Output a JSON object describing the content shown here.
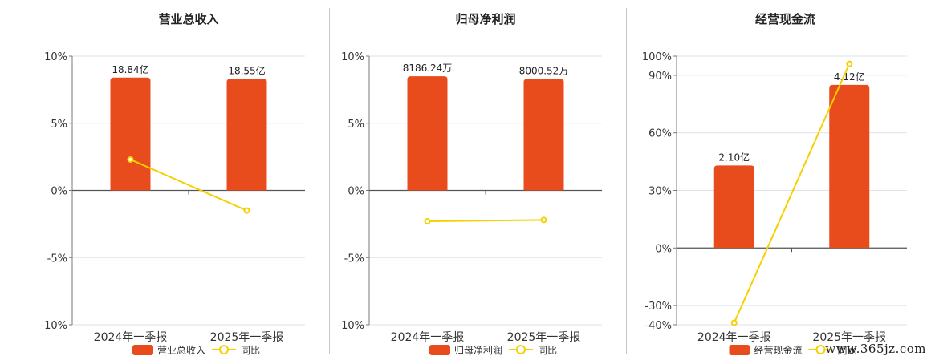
{
  "watermark": "www.365jz.com",
  "colors": {
    "bar": "#e84c1c",
    "line": "#f5d000",
    "grid": "#dde3ea",
    "axis": "#7a7a7a"
  },
  "chart_data": [
    {
      "type": "bar",
      "title": "营业总收入",
      "categories": [
        "2024年一季报",
        "2025年一季报"
      ],
      "series": [
        {
          "name": "营业总收入",
          "type": "bar",
          "axis": "left",
          "values": [
            8.4,
            8.3
          ],
          "labels": [
            "18.84亿",
            "18.55亿"
          ]
        },
        {
          "name": "同比",
          "type": "line",
          "axis": "left",
          "values": [
            2.3,
            -1.5
          ]
        }
      ],
      "yticks": [
        10,
        5,
        0,
        -5,
        -10
      ],
      "ytick_labels": [
        "10%",
        "5%",
        "0%",
        "-5%",
        "-10%"
      ],
      "ylim": [
        -10,
        10
      ],
      "grid": true,
      "legend": [
        "营业总收入",
        "同比"
      ],
      "legend_position": "bottom"
    },
    {
      "type": "bar",
      "title": "归母净利润",
      "categories": [
        "2024年一季报",
        "2025年一季报"
      ],
      "series": [
        {
          "name": "归母净利润",
          "type": "bar",
          "axis": "left",
          "values": [
            8.5,
            8.3
          ],
          "labels": [
            "8186.24万",
            "8000.52万"
          ]
        },
        {
          "name": "同比",
          "type": "line",
          "axis": "left",
          "values": [
            -2.3,
            -2.2
          ]
        }
      ],
      "yticks": [
        10,
        5,
        0,
        -5,
        -10
      ],
      "ytick_labels": [
        "10%",
        "5%",
        "0%",
        "-5%",
        "-10%"
      ],
      "ylim": [
        -10,
        10
      ],
      "grid": true,
      "legend": [
        "归母净利润",
        "同比"
      ],
      "legend_position": "bottom"
    },
    {
      "type": "bar",
      "title": "经营现金流",
      "categories": [
        "2024年一季报",
        "2025年一季报"
      ],
      "series": [
        {
          "name": "经营现金流",
          "type": "bar",
          "axis": "left",
          "values": [
            43,
            85
          ],
          "labels": [
            "2.10亿",
            "4.12亿"
          ]
        },
        {
          "name": "同比",
          "type": "line",
          "axis": "left",
          "values": [
            -39,
            96
          ]
        }
      ],
      "yticks": [
        100,
        90,
        60,
        30,
        0,
        -30,
        -40
      ],
      "ytick_labels": [
        "100%",
        "90%",
        "60%",
        "30%",
        "0%",
        "-30%",
        "-40%"
      ],
      "ylim": [
        -40,
        100
      ],
      "grid": true,
      "legend": [
        "经营现金流",
        "同比"
      ],
      "legend_position": "bottom"
    }
  ]
}
